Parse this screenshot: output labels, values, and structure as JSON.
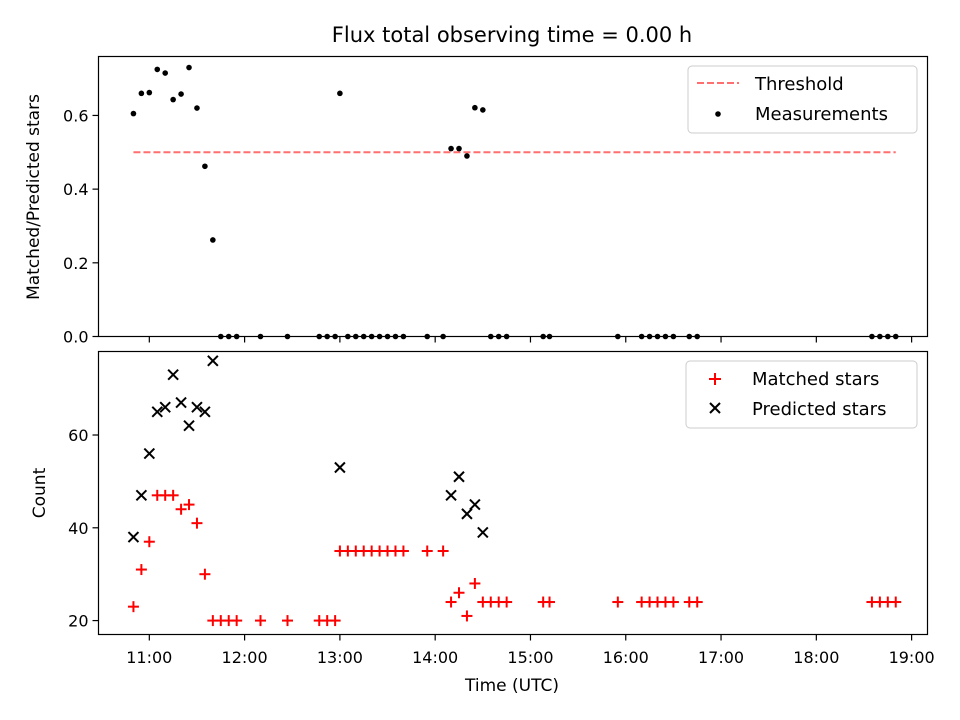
{
  "figure": {
    "title": "Flux total observing time = 0.00 h",
    "xlabel": "Time (UTC)",
    "xtick_labels": [
      "11:00",
      "12:00",
      "13:00",
      "14:00",
      "15:00",
      "16:00",
      "17:00",
      "18:00",
      "19:00"
    ]
  },
  "colors": {
    "threshold": "#ff6f6f",
    "measurements": "#000000",
    "matched": "#ff0000",
    "predicted": "#000000"
  },
  "chart_data": [
    {
      "type": "scatter",
      "ylabel": "Matched/Predicted stars",
      "xlim": [
        "10:28",
        "19:10"
      ],
      "ylim": [
        0,
        0.76
      ],
      "yticks": [
        0.0,
        0.2,
        0.4,
        0.6
      ],
      "ytick_labels": [
        "0.0",
        "0.2",
        "0.4",
        "0.6"
      ],
      "legend_position": "upper right",
      "legend": [
        "Threshold",
        "Measurements"
      ],
      "threshold": {
        "name": "Threshold",
        "value": 0.5,
        "x_range": [
          "10:50",
          "18:50"
        ],
        "style": "dashed"
      },
      "series": [
        {
          "name": "Measurements",
          "points": [
            [
              "10:50",
              0.605
            ],
            [
              "10:55",
              0.66
            ],
            [
              "11:00",
              0.662
            ],
            [
              "11:05",
              0.725
            ],
            [
              "11:10",
              0.715
            ],
            [
              "11:15",
              0.643
            ],
            [
              "11:20",
              0.658
            ],
            [
              "11:25",
              0.73
            ],
            [
              "11:30",
              0.62
            ],
            [
              "11:35",
              0.462
            ],
            [
              "11:40",
              0.262
            ],
            [
              "11:45",
              0.0
            ],
            [
              "11:50",
              0.0
            ],
            [
              "11:55",
              0.0
            ],
            [
              "12:10",
              0.0
            ],
            [
              "12:27",
              0.0
            ],
            [
              "12:47",
              0.0
            ],
            [
              "12:52",
              0.0
            ],
            [
              "12:57",
              0.0
            ],
            [
              "13:00",
              0.66
            ],
            [
              "13:05",
              0.0
            ],
            [
              "13:10",
              0.0
            ],
            [
              "13:15",
              0.0
            ],
            [
              "13:20",
              0.0
            ],
            [
              "13:25",
              0.0
            ],
            [
              "13:30",
              0.0
            ],
            [
              "13:35",
              0.0
            ],
            [
              "13:40",
              0.0
            ],
            [
              "13:55",
              0.0
            ],
            [
              "14:05",
              0.0
            ],
            [
              "14:10",
              0.51
            ],
            [
              "14:15",
              0.51
            ],
            [
              "14:20",
              0.49
            ],
            [
              "14:25",
              0.621
            ],
            [
              "14:30",
              0.615
            ],
            [
              "14:35",
              0.0
            ],
            [
              "14:40",
              0.0
            ],
            [
              "14:45",
              0.0
            ],
            [
              "15:08",
              0.0
            ],
            [
              "15:12",
              0.0
            ],
            [
              "15:55",
              0.0
            ],
            [
              "16:10",
              0.0
            ],
            [
              "16:15",
              0.0
            ],
            [
              "16:20",
              0.0
            ],
            [
              "16:25",
              0.0
            ],
            [
              "16:30",
              0.0
            ],
            [
              "16:40",
              0.0
            ],
            [
              "16:45",
              0.0
            ],
            [
              "18:35",
              0.0
            ],
            [
              "18:40",
              0.0
            ],
            [
              "18:45",
              0.0
            ],
            [
              "18:50",
              0.0
            ]
          ]
        }
      ]
    },
    {
      "type": "scatter",
      "ylabel": "Count",
      "xlim": [
        "10:28",
        "19:10"
      ],
      "ylim": [
        17,
        78
      ],
      "yticks": [
        20,
        40,
        60
      ],
      "ytick_labels": [
        "20",
        "40",
        "60"
      ],
      "legend_position": "upper right",
      "legend": [
        "Matched stars",
        "Predicted stars"
      ],
      "series": [
        {
          "name": "Matched stars",
          "marker": "plus",
          "points": [
            [
              "10:50",
              23
            ],
            [
              "10:55",
              31
            ],
            [
              "11:00",
              37
            ],
            [
              "11:05",
              47
            ],
            [
              "11:10",
              47
            ],
            [
              "11:15",
              47
            ],
            [
              "11:20",
              44
            ],
            [
              "11:25",
              45
            ],
            [
              "11:30",
              41
            ],
            [
              "11:35",
              30
            ],
            [
              "11:40",
              20
            ],
            [
              "11:45",
              20
            ],
            [
              "11:50",
              20
            ],
            [
              "11:55",
              20
            ],
            [
              "12:10",
              20
            ],
            [
              "12:27",
              20
            ],
            [
              "12:47",
              20
            ],
            [
              "12:52",
              20
            ],
            [
              "12:57",
              20
            ],
            [
              "13:00",
              35
            ],
            [
              "13:05",
              35
            ],
            [
              "13:10",
              35
            ],
            [
              "13:15",
              35
            ],
            [
              "13:20",
              35
            ],
            [
              "13:25",
              35
            ],
            [
              "13:30",
              35
            ],
            [
              "13:35",
              35
            ],
            [
              "13:40",
              35
            ],
            [
              "13:55",
              35
            ],
            [
              "14:05",
              35
            ],
            [
              "14:10",
              24
            ],
            [
              "14:15",
              26
            ],
            [
              "14:20",
              21
            ],
            [
              "14:25",
              28
            ],
            [
              "14:30",
              24
            ],
            [
              "14:35",
              24
            ],
            [
              "14:40",
              24
            ],
            [
              "14:45",
              24
            ],
            [
              "15:08",
              24
            ],
            [
              "15:12",
              24
            ],
            [
              "15:55",
              24
            ],
            [
              "16:10",
              24
            ],
            [
              "16:15",
              24
            ],
            [
              "16:20",
              24
            ],
            [
              "16:25",
              24
            ],
            [
              "16:30",
              24
            ],
            [
              "16:40",
              24
            ],
            [
              "16:45",
              24
            ],
            [
              "18:35",
              24
            ],
            [
              "18:40",
              24
            ],
            [
              "18:45",
              24
            ],
            [
              "18:50",
              24
            ]
          ]
        },
        {
          "name": "Predicted stars",
          "marker": "x",
          "points": [
            [
              "10:50",
              38
            ],
            [
              "10:55",
              47
            ],
            [
              "11:00",
              56
            ],
            [
              "11:05",
              65
            ],
            [
              "11:10",
              66
            ],
            [
              "11:15",
              73
            ],
            [
              "11:20",
              67
            ],
            [
              "11:25",
              62
            ],
            [
              "11:30",
              66
            ],
            [
              "11:35",
              65
            ],
            [
              "11:40",
              76
            ],
            [
              "13:00",
              53
            ],
            [
              "14:10",
              47
            ],
            [
              "14:15",
              51
            ],
            [
              "14:20",
              43
            ],
            [
              "14:25",
              45
            ],
            [
              "14:30",
              39
            ]
          ]
        }
      ]
    }
  ]
}
